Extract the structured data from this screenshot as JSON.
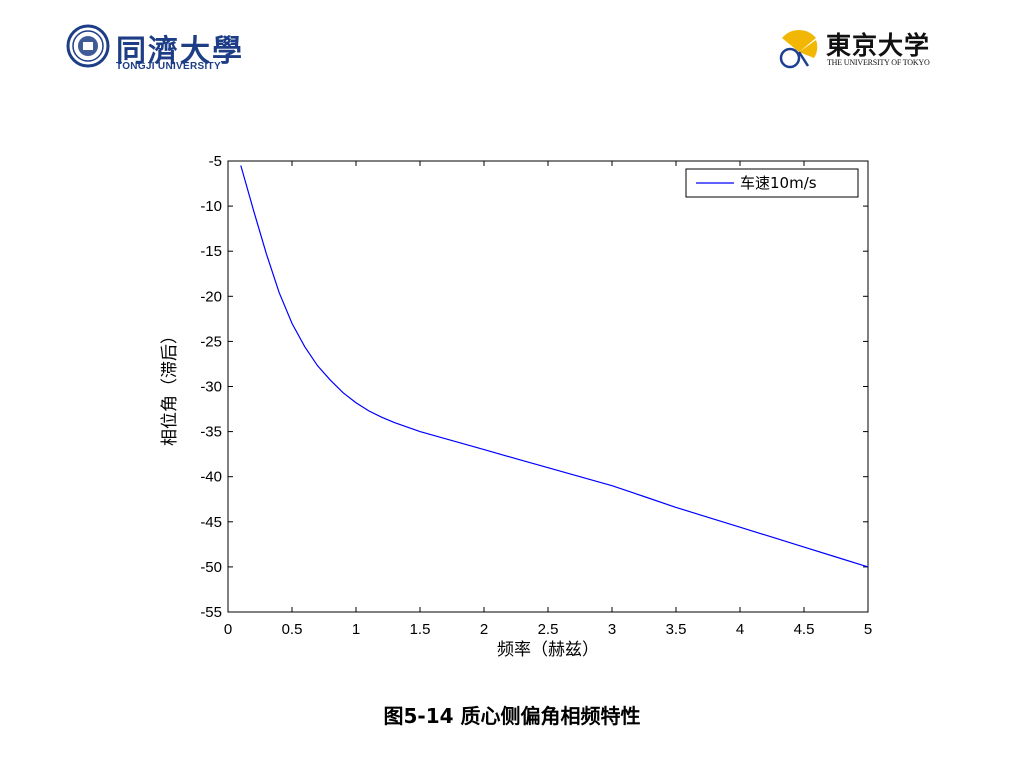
{
  "header": {
    "left_logo_cn": "同濟大學",
    "left_logo_en": "TONGJI UNIVERSITY",
    "right_logo_cn": "東京大学",
    "right_logo_en": "THE UNIVERSITY OF TOKYO"
  },
  "caption": "图5-14 质心侧偏角相频特性",
  "colors": {
    "series_line": "#0000ff",
    "tongji_blue": "#1d3e86",
    "todai_yellow": "#f2b705",
    "todai_blue": "#1c3f94"
  },
  "chart_data": {
    "type": "line",
    "title": "",
    "xlabel": "频率（赫兹）",
    "ylabel": "相位角（滞后）",
    "xlim": [
      0,
      5
    ],
    "ylim": [
      -55,
      -5
    ],
    "xticks": [
      0,
      0.5,
      1,
      1.5,
      2,
      2.5,
      3,
      3.5,
      4,
      4.5,
      5
    ],
    "xtick_labels": [
      "0",
      "0.5",
      "1",
      "1.5",
      "2",
      "2.5",
      "3",
      "3.5",
      "4",
      "4.5",
      "5"
    ],
    "yticks": [
      -5,
      -10,
      -15,
      -20,
      -25,
      -30,
      -35,
      -40,
      -45,
      -50,
      -55
    ],
    "ytick_labels": [
      "-5",
      "-10",
      "-15",
      "-20",
      "-25",
      "-30",
      "-35",
      "-40",
      "-45",
      "-50",
      "-55"
    ],
    "grid": true,
    "legend_position": "top-right",
    "series": [
      {
        "name": "车速10m/s",
        "x": [
          0.1,
          0.2,
          0.3,
          0.4,
          0.5,
          0.6,
          0.7,
          0.8,
          0.9,
          1.0,
          1.1,
          1.2,
          1.3,
          1.4,
          1.5,
          1.75,
          2.0,
          2.25,
          2.5,
          2.75,
          3.0,
          3.25,
          3.5,
          3.75,
          4.0,
          4.25,
          4.5,
          4.75,
          5.0
        ],
        "y": [
          -5.5,
          -10.5,
          -15.3,
          -19.6,
          -23.0,
          -25.6,
          -27.7,
          -29.3,
          -30.7,
          -31.8,
          -32.7,
          -33.4,
          -34.0,
          -34.5,
          -35.0,
          -36.0,
          -37.0,
          -38.0,
          -39.0,
          -40.0,
          -41.0,
          -42.2,
          -43.4,
          -44.5,
          -45.6,
          -46.7,
          -47.8,
          -48.9,
          -50.0
        ]
      }
    ]
  }
}
